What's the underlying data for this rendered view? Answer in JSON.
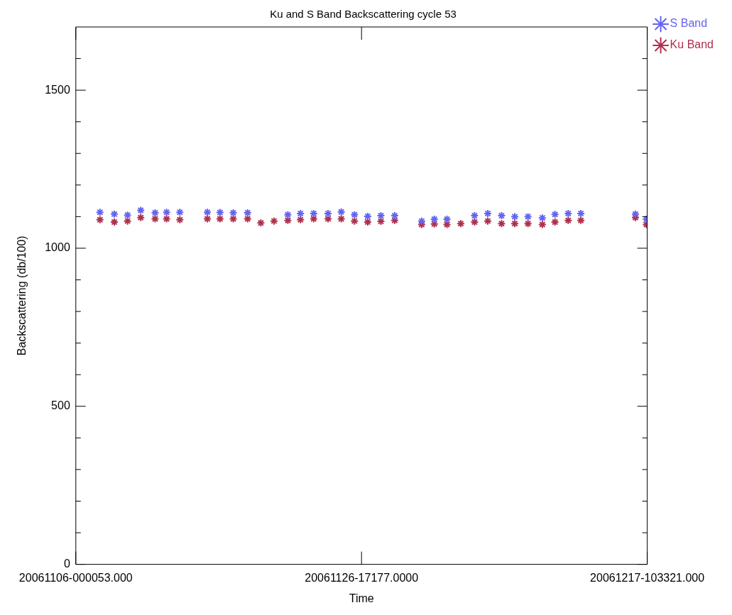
{
  "chart_data": {
    "type": "scatter",
    "title": "Ku and S Band Backscattering cycle 53",
    "xlabel": "Time",
    "ylabel": "Backscattering (db/100)",
    "x": [
      "2006-11-07T18:00",
      "2006-11-08T19:00",
      "2006-11-09T18:00",
      "2006-11-10T17:00",
      "2006-11-11T18:00",
      "2006-11-12T14:00",
      "2006-11-13T13:00",
      "2006-11-15T13:00",
      "2006-11-16T11:00",
      "2006-11-17T10:00",
      "2006-11-18T11:00",
      "2006-11-19T10:00",
      "2006-11-20T09:00",
      "2006-11-21T09:00",
      "2006-11-22T07:00",
      "2006-11-23T06:00",
      "2006-11-24T07:00",
      "2006-11-25T06:00",
      "2006-11-26T05:00",
      "2006-11-27T04:00",
      "2006-11-28T03:00",
      "2006-11-29T03:00",
      "2006-12-01T02:00",
      "2006-12-02T00:00",
      "2006-12-02T22:00",
      "2006-12-03T22:00",
      "2006-12-04T22:00",
      "2006-12-05T21:00",
      "2006-12-06T21:00",
      "2006-12-07T20:00",
      "2006-12-08T19:00",
      "2006-12-09T20:00",
      "2006-12-10T18:00",
      "2006-12-11T17:00",
      "2006-12-12T15:00",
      "2006-12-16T14:00",
      "2006-12-17T09:00"
    ],
    "series": [
      {
        "name": "S Band",
        "color": "#6464f0",
        "values": [
          1114,
          1108,
          1105,
          1120,
          1112,
          1114,
          1114,
          1114,
          1113,
          1112,
          1112,
          null,
          null,
          1106,
          1110,
          1110,
          1110,
          1115,
          1106,
          1101,
          1103,
          1103,
          1086,
          1092,
          1092,
          null,
          1103,
          1110,
          1103,
          1100,
          1100,
          1096,
          1107,
          1110,
          1110,
          1108,
          1092
        ]
      },
      {
        "name": "Ku Band",
        "color": "#b0304c",
        "values": [
          1090,
          1083,
          1086,
          1097,
          1093,
          1093,
          1090,
          1093,
          1093,
          1093,
          1093,
          1080,
          1086,
          1088,
          1090,
          1093,
          1093,
          1093,
          1086,
          1083,
          1085,
          1088,
          1075,
          1077,
          1075,
          1078,
          1083,
          1086,
          1078,
          1078,
          1078,
          1075,
          1083,
          1088,
          1088,
          1097,
          1075
        ]
      }
    ],
    "xlim": [
      "2006-11-06T00:00",
      "2006-12-17T10:33"
    ],
    "xticks": [
      {
        "value": "2006-11-06T00:00",
        "label": "20061106-000053.000"
      },
      {
        "value": "2006-11-26T17:17",
        "label": "20061126-17177.0000"
      },
      {
        "value": "2006-12-17T10:33",
        "label": "20061217-103321.000"
      }
    ],
    "ylim": [
      0,
      1700
    ],
    "yticks": [
      0,
      {
        "value": 100,
        "label": null
      },
      {
        "value": 200,
        "label": null
      },
      {
        "value": 300,
        "label": null
      },
      {
        "value": 400,
        "label": null
      },
      500,
      {
        "value": 600,
        "label": null
      },
      {
        "value": 700,
        "label": null
      },
      {
        "value": 800,
        "label": null
      },
      {
        "value": 900,
        "label": null
      },
      1000,
      {
        "value": 1100,
        "label": null
      },
      {
        "value": 1200,
        "label": null
      },
      {
        "value": 1300,
        "label": null
      },
      {
        "value": 1400,
        "label": null
      },
      1500,
      {
        "value": 1600,
        "label": null
      }
    ],
    "marker": "cross",
    "legend": "top right",
    "grid": false
  }
}
